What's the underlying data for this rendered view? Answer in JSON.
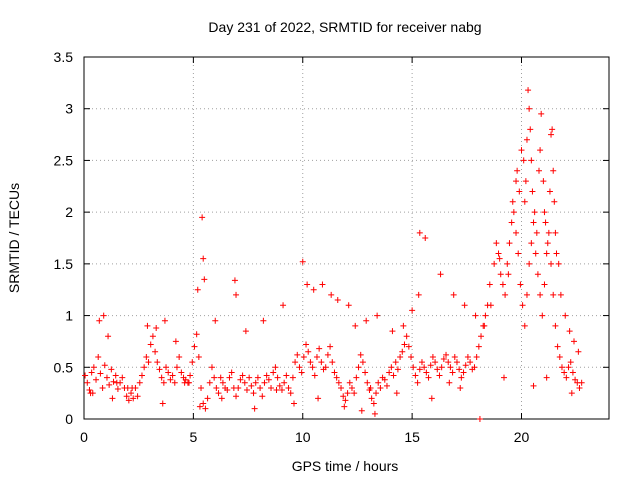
{
  "chart_data": {
    "type": "scatter",
    "title": "Day 231 of 2022, SRMTID for receiver nabg",
    "xlabel": "GPS time / hours",
    "ylabel": "SRMTID / TECUs",
    "xlim": [
      0,
      24
    ],
    "ylim": [
      0,
      3.5
    ],
    "xticks": [
      0,
      5,
      10,
      15,
      20
    ],
    "xtick_labels": [
      "0",
      "5",
      "10",
      "15",
      "20"
    ],
    "yticks": [
      0,
      0.5,
      1,
      1.5,
      2,
      2.5,
      3,
      3.5
    ],
    "ytick_labels": [
      "0",
      "0.5",
      "1",
      "1.5",
      "2",
      "2.5",
      "3",
      "3.5"
    ],
    "grid": true,
    "marker": "+",
    "color": "#ff0000",
    "series": [
      {
        "name": "SRMTID",
        "x": [
          0.05,
          0.15,
          0.25,
          0.35,
          0.45,
          0.55,
          0.65,
          0.75,
          0.85,
          0.95,
          1.05,
          1.15,
          1.25,
          1.35,
          1.45,
          1.55,
          1.65,
          1.75,
          1.85,
          1.95,
          2.05,
          2.15,
          2.25,
          2.35,
          2.45,
          2.55,
          2.65,
          2.75,
          2.85,
          2.95,
          3.05,
          3.15,
          3.25,
          3.35,
          3.45,
          3.55,
          3.65,
          3.75,
          3.85,
          3.95,
          4.05,
          4.15,
          4.25,
          4.35,
          4.45,
          4.55,
          4.65,
          4.75,
          4.85,
          4.95,
          5.05,
          5.15,
          5.25,
          5.35,
          5.45,
          5.55,
          5.65,
          5.75,
          5.85,
          5.95,
          6.05,
          6.15,
          6.25,
          6.35,
          6.45,
          6.55,
          6.65,
          6.75,
          6.85,
          6.95,
          7.05,
          7.15,
          7.25,
          7.35,
          7.45,
          7.55,
          7.65,
          7.75,
          7.85,
          7.95,
          8.05,
          8.15,
          8.25,
          8.35,
          8.45,
          8.55,
          8.65,
          8.75,
          8.85,
          8.95,
          9.05,
          9.15,
          9.25,
          9.35,
          9.45,
          9.55,
          9.65,
          9.75,
          9.85,
          9.95,
          10.05,
          10.15,
          10.25,
          10.35,
          10.45,
          10.55,
          10.65,
          10.75,
          10.85,
          10.95,
          11.05,
          11.15,
          11.25,
          11.35,
          11.45,
          11.55,
          11.65,
          11.75,
          11.85,
          11.95,
          12.05,
          12.15,
          12.25,
          12.35,
          12.45,
          12.55,
          12.65,
          12.75,
          12.85,
          12.95,
          13.05,
          13.15,
          13.25,
          13.35,
          13.45,
          13.55,
          13.65,
          13.75,
          13.85,
          13.95,
          14.05,
          14.15,
          14.25,
          14.35,
          14.45,
          14.55,
          14.65,
          14.75,
          14.85,
          14.95,
          15.05,
          15.15,
          15.25,
          15.35,
          15.45,
          15.55,
          15.65,
          15.75,
          15.85,
          15.95,
          16.05,
          16.15,
          16.25,
          16.35,
          16.45,
          16.55,
          16.65,
          16.75,
          16.85,
          16.95,
          17.05,
          17.15,
          17.25,
          17.35,
          17.45,
          17.55,
          17.65,
          17.75,
          17.85,
          17.95,
          18.05,
          18.15,
          18.25,
          18.35,
          18.45,
          18.55,
          18.75,
          18.85,
          18.95,
          19.05,
          19.15,
          19.25,
          19.35,
          19.45,
          19.55,
          19.65,
          19.75,
          19.85,
          19.95,
          20.05,
          20.15,
          20.25,
          20.35,
          20.45,
          20.55,
          20.65,
          20.75,
          20.85,
          20.95,
          21.05,
          21.15,
          21.25,
          21.35,
          21.45,
          21.55,
          21.65,
          21.75,
          21.85,
          21.95,
          22.05,
          22.15,
          22.25,
          22.35,
          22.45,
          22.55,
          22.65,
          22.75,
          0.3,
          0.7,
          0.9,
          1.1,
          1.5,
          2.0,
          2.9,
          3.3,
          3.7,
          4.2,
          4.8,
          5.2,
          5.4,
          5.45,
          5.5,
          6.0,
          6.9,
          6.95,
          7.4,
          8.2,
          9.1,
          10.0,
          10.2,
          10.5,
          10.9,
          11.3,
          11.6,
          12.1,
          12.4,
          12.9,
          13.4,
          14.1,
          14.6,
          15.0,
          15.3,
          15.35,
          15.6,
          16.3,
          16.9,
          17.4,
          17.9,
          18.3,
          18.6,
          19.0,
          19.4,
          19.6,
          19.75,
          19.8,
          19.9,
          20.0,
          20.1,
          20.15,
          20.2,
          20.25,
          20.3,
          20.35,
          20.4,
          20.45,
          20.5,
          20.6,
          20.7,
          20.8,
          20.85,
          20.9,
          21.0,
          21.05,
          21.1,
          21.2,
          21.3,
          21.35,
          21.4,
          21.45,
          21.5,
          21.55,
          21.6,
          21.7,
          21.8,
          22.0,
          22.2,
          22.4,
          22.6,
          0.4,
          1.3,
          2.2,
          3.6,
          4.6,
          5.3,
          6.3,
          7.8,
          8.8,
          9.6,
          10.7,
          11.9,
          12.7,
          13.1,
          13.3,
          14.3,
          15.9,
          16.7,
          17.2,
          18.1,
          19.2,
          20.55,
          21.15,
          22.3
        ],
        "y": [
          0.42,
          0.35,
          0.28,
          0.45,
          0.5,
          0.38,
          0.6,
          0.44,
          0.3,
          0.52,
          0.4,
          0.33,
          0.48,
          0.36,
          0.42,
          0.29,
          0.35,
          0.4,
          0.3,
          0.22,
          0.18,
          0.25,
          0.2,
          0.3,
          0.22,
          0.35,
          0.42,
          0.5,
          0.6,
          0.55,
          0.72,
          0.8,
          0.65,
          0.55,
          0.48,
          0.4,
          0.35,
          0.5,
          0.45,
          0.38,
          0.42,
          0.35,
          0.5,
          0.6,
          0.45,
          0.4,
          0.38,
          0.35,
          0.42,
          0.55,
          0.7,
          0.82,
          0.6,
          0.3,
          0.15,
          0.1,
          0.2,
          0.35,
          0.5,
          0.4,
          0.3,
          0.25,
          0.4,
          0.35,
          0.3,
          0.28,
          0.4,
          0.45,
          0.3,
          0.22,
          0.3,
          0.38,
          0.42,
          0.35,
          0.28,
          0.4,
          0.32,
          0.25,
          0.35,
          0.4,
          0.3,
          0.22,
          0.35,
          0.42,
          0.38,
          0.3,
          0.45,
          0.5,
          0.4,
          0.32,
          0.28,
          0.35,
          0.42,
          0.3,
          0.25,
          0.4,
          0.55,
          0.62,
          0.5,
          0.45,
          0.6,
          0.72,
          0.65,
          0.55,
          0.5,
          0.42,
          0.6,
          0.68,
          0.55,
          0.48,
          0.5,
          0.62,
          0.7,
          0.55,
          0.45,
          0.4,
          0.35,
          0.3,
          0.22,
          0.18,
          0.25,
          0.35,
          0.3,
          0.25,
          0.4,
          0.5,
          0.62,
          0.55,
          0.45,
          0.35,
          0.28,
          0.2,
          0.15,
          0.25,
          0.35,
          0.3,
          0.4,
          0.38,
          0.32,
          0.45,
          0.5,
          0.42,
          0.55,
          0.48,
          0.6,
          0.65,
          0.72,
          0.8,
          0.7,
          0.6,
          0.5,
          0.42,
          0.35,
          0.48,
          0.55,
          0.5,
          0.45,
          0.4,
          0.52,
          0.6,
          0.55,
          0.48,
          0.42,
          0.5,
          0.58,
          0.62,
          0.55,
          0.5,
          0.45,
          0.6,
          0.55,
          0.48,
          0.4,
          0.45,
          0.52,
          0.6,
          0.55,
          0.48,
          0.5,
          0.6,
          0.7,
          0.8,
          0.9,
          1.0,
          1.1,
          1.3,
          1.5,
          1.7,
          1.6,
          1.4,
          1.3,
          1.2,
          1.5,
          1.7,
          1.9,
          2.0,
          1.8,
          1.6,
          1.3,
          1.1,
          0.9,
          1.2,
          1.5,
          1.7,
          1.9,
          1.6,
          1.4,
          1.2,
          1.0,
          1.3,
          1.6,
          1.8,
          1.5,
          1.2,
          0.9,
          0.7,
          0.6,
          0.5,
          0.45,
          0.4,
          0.5,
          0.55,
          0.45,
          0.38,
          0.35,
          0.3,
          0.35,
          0.25,
          0.95,
          1.0,
          0.8,
          0.35,
          0.3,
          0.9,
          0.88,
          0.95,
          0.75,
          0.35,
          1.25,
          1.95,
          1.55,
          1.35,
          0.95,
          1.34,
          1.2,
          0.85,
          0.95,
          1.1,
          1.52,
          1.3,
          1.25,
          1.3,
          1.2,
          1.15,
          1.1,
          0.9,
          0.95,
          1.0,
          0.85,
          0.9,
          1.05,
          1.2,
          1.8,
          1.75,
          1.4,
          1.2,
          1.1,
          1.0,
          0.9,
          1.1,
          1.55,
          1.4,
          2.1,
          2.3,
          2.4,
          2.2,
          2.6,
          2.5,
          2.1,
          2.3,
          2.7,
          3.18,
          3.0,
          2.8,
          2.5,
          2.2,
          2.0,
          1.8,
          2.4,
          2.6,
          2.95,
          2.3,
          2.0,
          1.9,
          1.7,
          2.2,
          2.75,
          2.8,
          2.4,
          2.1,
          1.8,
          1.6,
          1.5,
          1.2,
          1.0,
          0.85,
          0.75,
          0.65,
          0.25,
          0.2,
          0.3,
          0.15,
          0.35,
          0.12,
          0.2,
          0.1,
          0.28,
          0.15,
          0.2,
          0.12,
          0.08,
          0.3,
          0.05,
          0.25,
          0.2,
          0.35,
          0.3,
          0.0,
          0.4,
          0.32,
          0.4,
          0.25
        ]
      }
    ]
  }
}
